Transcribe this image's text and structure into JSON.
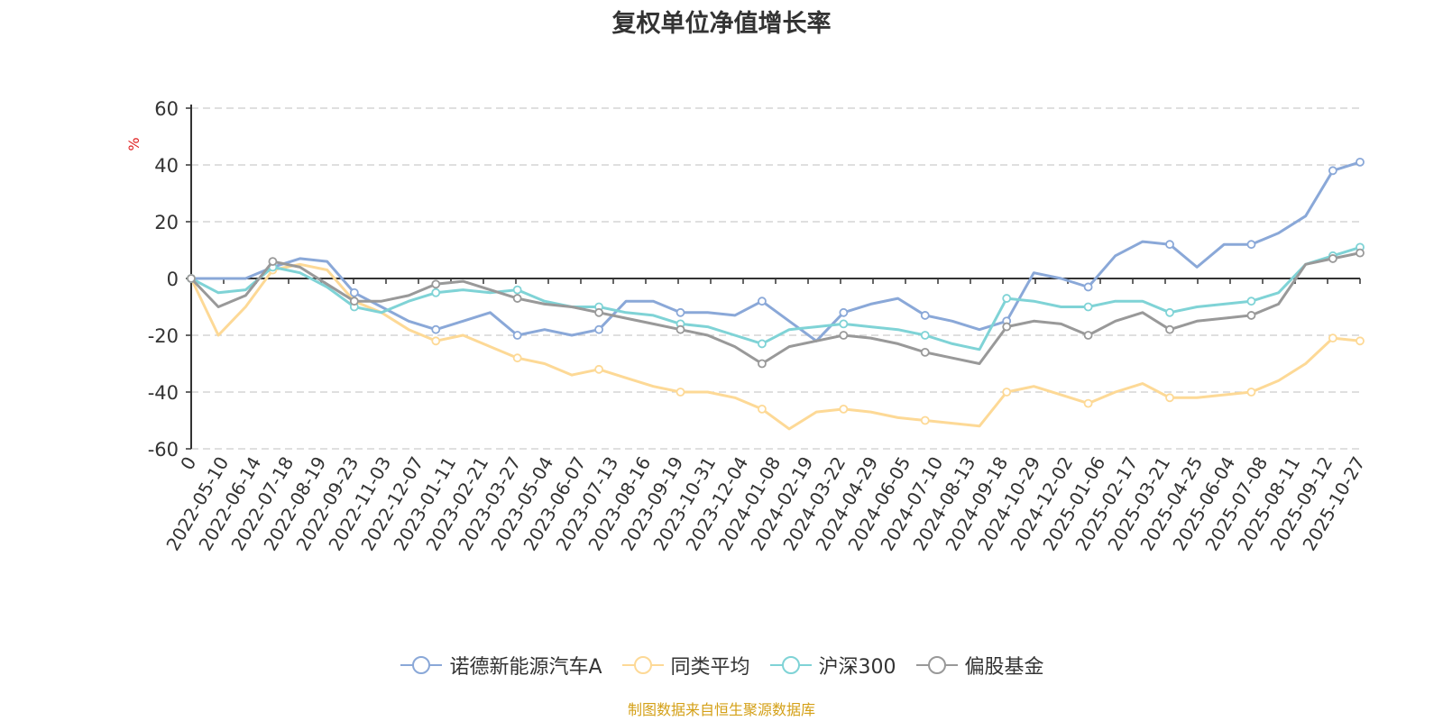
{
  "title": "复权单位净值增长率",
  "source_note": "制图数据来自恒生聚源数据库",
  "chart_data": {
    "type": "line",
    "title": "复权单位净值增长率",
    "ylabel": "%",
    "ylim": [
      -60,
      60
    ],
    "yticks": [
      60,
      40,
      20,
      0,
      -20,
      -40,
      -60
    ],
    "grid": true,
    "legend_position": "bottom",
    "x_tick_labels": [
      "0",
      "2022-05-10",
      "2022-06-14",
      "2022-07-18",
      "2022-08-19",
      "2022-09-23",
      "2022-11-03",
      "2022-12-07",
      "2023-01-11",
      "2023-02-21",
      "2023-03-27",
      "2023-05-04",
      "2023-06-07",
      "2023-07-13",
      "2023-08-16",
      "2023-09-19",
      "2023-10-31",
      "2023-12-04",
      "2024-01-08",
      "2024-02-19",
      "2024-03-22",
      "2024-04-29",
      "2024-06-05",
      "2024-07-10",
      "2024-08-13",
      "2024-09-18",
      "2024-10-29",
      "2024-12-02",
      "2025-01-06",
      "2025-02-17",
      "2025-03-21",
      "2025-04-25",
      "2025-06-04",
      "2025-07-08",
      "2025-08-11",
      "2025-09-12",
      "2025-10-27"
    ],
    "series": [
      {
        "name": "诺德新能源汽车A",
        "color": "#8aa8d8",
        "values": [
          0,
          0,
          0,
          4,
          7,
          6,
          -5,
          -10,
          -15,
          -18,
          -15,
          -12,
          -20,
          -18,
          -20,
          -18,
          -8,
          -8,
          -12,
          -12,
          -13,
          -8,
          -15,
          -22,
          -12,
          -9,
          -7,
          -13,
          -15,
          -18,
          -15,
          2,
          0,
          -3,
          8,
          13,
          12,
          4,
          12,
          12,
          16,
          22,
          38,
          41
        ]
      },
      {
        "name": "同类平均",
        "color": "#fdd996",
        "values": [
          0,
          -20,
          -10,
          3,
          5,
          3,
          -8,
          -12,
          -18,
          -22,
          -20,
          -24,
          -28,
          -30,
          -34,
          -32,
          -35,
          -38,
          -40,
          -40,
          -42,
          -46,
          -53,
          -47,
          -46,
          -47,
          -49,
          -50,
          -51,
          -52,
          -40,
          -38,
          -41,
          -44,
          -40,
          -37,
          -42,
          -42,
          -41,
          -40,
          -36,
          -30,
          -21,
          -22
        ]
      },
      {
        "name": "沪深300",
        "color": "#7fd3d6",
        "values": [
          0,
          -5,
          -4,
          4,
          2,
          -3,
          -10,
          -12,
          -8,
          -5,
          -4,
          -5,
          -4,
          -8,
          -10,
          -10,
          -12,
          -13,
          -16,
          -17,
          -20,
          -23,
          -18,
          -17,
          -16,
          -17,
          -18,
          -20,
          -23,
          -25,
          -7,
          -8,
          -10,
          -10,
          -8,
          -8,
          -12,
          -10,
          -9,
          -8,
          -5,
          5,
          8,
          11
        ]
      },
      {
        "name": "偏股基金",
        "color": "#999999",
        "values": [
          0,
          -10,
          -6,
          6,
          4,
          -2,
          -8,
          -8,
          -6,
          -2,
          -1,
          -4,
          -7,
          -9,
          -10,
          -12,
          -14,
          -16,
          -18,
          -20,
          -24,
          -30,
          -24,
          -22,
          -20,
          -21,
          -23,
          -26,
          -28,
          -30,
          -17,
          -15,
          -16,
          -20,
          -15,
          -12,
          -18,
          -15,
          -14,
          -13,
          -9,
          5,
          7,
          9
        ]
      }
    ]
  }
}
